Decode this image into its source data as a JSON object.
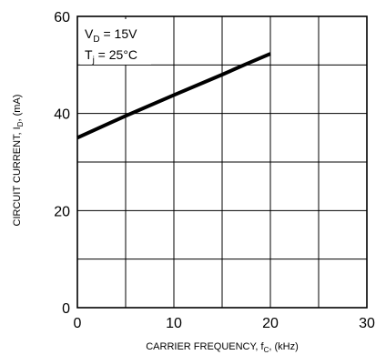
{
  "chart_data": {
    "type": "line",
    "title": "",
    "xlabel": {
      "main": "CARRIER FREQUENCY, f",
      "sub": "C",
      "suffix": ", (kHz)"
    },
    "ylabel": {
      "main": "CIRCUIT CURRENT, I",
      "sub": "D",
      "suffix": ", (mA)"
    },
    "xlim": [
      0,
      30
    ],
    "ylim": [
      0,
      60
    ],
    "x_ticks": [
      "0",
      "10",
      "20",
      "30"
    ],
    "y_ticks": [
      "0",
      "20",
      "40",
      "60"
    ],
    "grid": true,
    "series": [
      {
        "x": [
          0,
          5,
          10,
          15,
          17.5,
          20
        ],
        "y": [
          35,
          39.5,
          43.8,
          48,
          50.2,
          52.3
        ]
      }
    ],
    "annotations": {
      "vd": {
        "main": "V",
        "sub": "D",
        "suffix": " = 15V"
      },
      "tj": {
        "main": "T",
        "sub": "j",
        "suffix": " = 25°C"
      }
    }
  }
}
